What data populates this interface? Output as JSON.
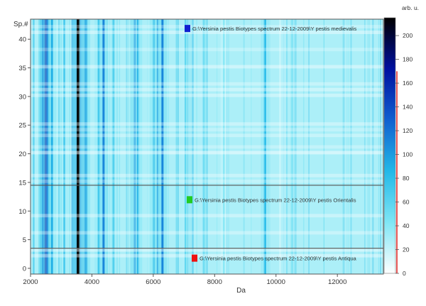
{
  "chart_data": {
    "type": "heatmap",
    "title": "",
    "xlabel": "Da",
    "ylabel": "Sp.#",
    "xlim": [
      2000,
      13500
    ],
    "ylim": [
      -1,
      43.5
    ],
    "x_ticks": [
      2000,
      4000,
      6000,
      8000,
      10000,
      12000
    ],
    "y_ticks": [
      0,
      5,
      10,
      15,
      20,
      25,
      30,
      35,
      40
    ],
    "colorbar": {
      "unit": "arb. u.",
      "range": [
        0,
        215
      ],
      "ticks": [
        0,
        20,
        40,
        60,
        80,
        100,
        120,
        140,
        160,
        180,
        200
      ],
      "gradient": [
        "#ffffff",
        "#7fe6f5",
        "#22b8e8",
        "#1060d0",
        "#0010a0",
        "#000000"
      ],
      "threshold_marker": 170,
      "threshold_color": "#dd2222"
    },
    "groups": [
      {
        "label": "G:\\Yersinia pestis Biotypes spectrum 22-12-2009\\Y pestis medievalis",
        "color": "#1020d0",
        "spectra_from": 15,
        "spectra_to": 42
      },
      {
        "label": "G:\\Yersinia pestis Biotypes spectrum 22-12-2009\\Y pestis Orientalis",
        "color": "#22cc22",
        "spectra_from": 4,
        "spectra_to": 14
      },
      {
        "label": "G:\\Yersinia pestis Biotypes spectrum 22-12-2009\\Y pestis Antiqua",
        "color": "#ee1111",
        "spectra_from": 0,
        "spectra_to": 3
      }
    ],
    "group_separators": [
      14.5,
      3.5
    ],
    "peaks_da": [
      {
        "mass": 2100,
        "intensity": 60
      },
      {
        "mass": 2420,
        "intensity": 130
      },
      {
        "mass": 2500,
        "intensity": 170
      },
      {
        "mass": 2560,
        "intensity": 110
      },
      {
        "mass": 2700,
        "intensity": 90
      },
      {
        "mass": 3100,
        "intensity": 70
      },
      {
        "mass": 3550,
        "intensity": 215
      },
      {
        "mass": 3800,
        "intensity": 100
      },
      {
        "mass": 4220,
        "intensity": 80
      },
      {
        "mass": 4380,
        "intensity": 110
      },
      {
        "mass": 4700,
        "intensity": 70
      },
      {
        "mass": 5400,
        "intensity": 110
      },
      {
        "mass": 5500,
        "intensity": 90
      },
      {
        "mass": 6020,
        "intensity": 90
      },
      {
        "mass": 6150,
        "intensity": 100
      },
      {
        "mass": 6300,
        "intensity": 110
      },
      {
        "mass": 7050,
        "intensity": 60
      },
      {
        "mass": 7640,
        "intensity": 60
      },
      {
        "mass": 8300,
        "intensity": 40
      },
      {
        "mass": 9650,
        "intensity": 80
      },
      {
        "mass": 10200,
        "intensity": 30
      }
    ]
  }
}
